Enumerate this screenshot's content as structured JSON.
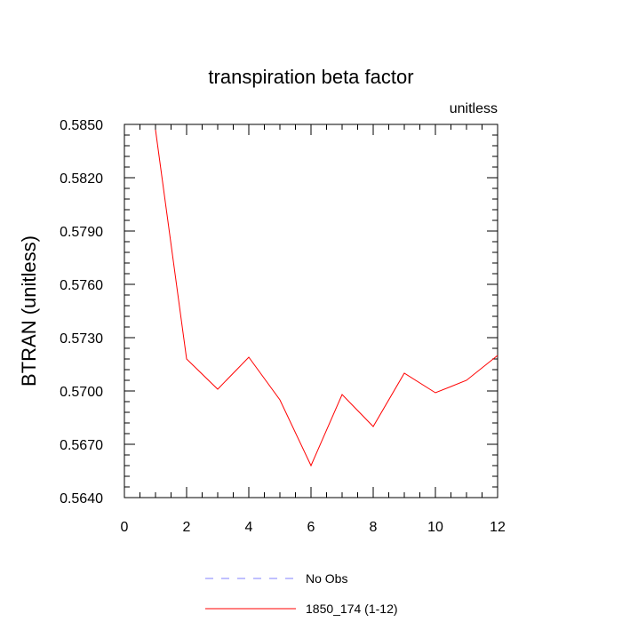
{
  "chart_data": {
    "type": "line",
    "title": "transpiration beta factor",
    "subtitle": "unitless",
    "xlabel": "",
    "ylabel": "BTRAN  (unitless)",
    "xlim": [
      0,
      12
    ],
    "ylim": [
      0.564,
      0.585
    ],
    "x_ticks": [
      0,
      2,
      4,
      6,
      8,
      10,
      12
    ],
    "x_tick_labels": [
      "0",
      "2",
      "4",
      "6",
      "8",
      "10",
      "12"
    ],
    "y_ticks": [
      0.564,
      0.567,
      0.57,
      0.573,
      0.576,
      0.579,
      0.582,
      0.585
    ],
    "y_tick_labels": [
      "0.5640",
      "0.5670",
      "0.5700",
      "0.5730",
      "0.5760",
      "0.5790",
      "0.5820",
      "0.5850"
    ],
    "grid": false,
    "legend_position": "bottom",
    "series": [
      {
        "name": "1850_174 (1-12)",
        "color": "#ff0000",
        "style": "solid",
        "x": [
          1,
          2,
          3,
          4,
          5,
          6,
          7,
          8,
          9,
          10,
          11,
          12
        ],
        "y": [
          0.5847,
          0.5718,
          0.5701,
          0.5719,
          0.5695,
          0.5658,
          0.5698,
          0.568,
          0.571,
          0.5699,
          0.5706,
          0.572
        ]
      }
    ],
    "legend": [
      {
        "label": "No Obs",
        "color": "#8080ff",
        "style": "dashed"
      },
      {
        "label": "1850_174 (1-12)",
        "color": "#ff0000",
        "style": "solid"
      }
    ]
  }
}
